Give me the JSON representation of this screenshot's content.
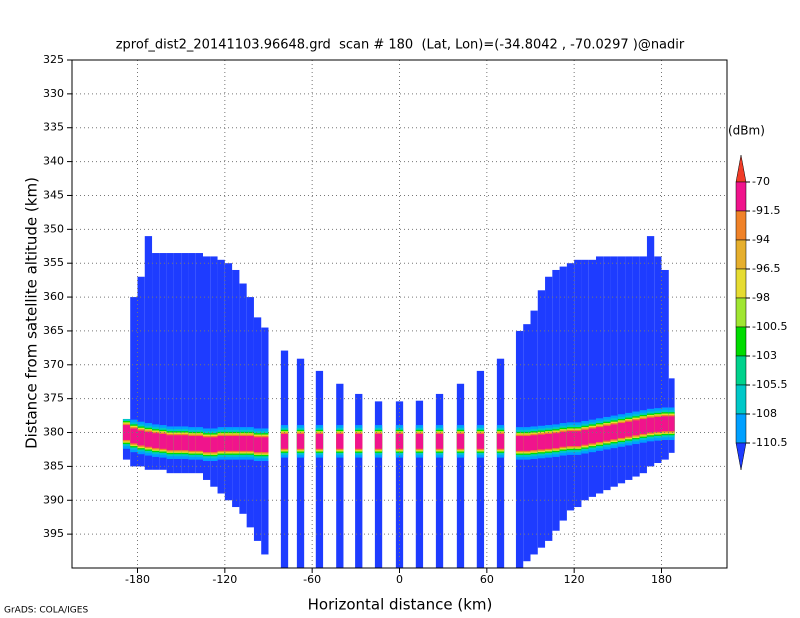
{
  "chart_data": {
    "type": "shaded",
    "title": "zprof_dist2_20141103.96648.grd  scan # 180  (Lat, Lon)=(-34.8042 , -70.0297 )@nadir",
    "x_label": "Horizontal distance (km)",
    "y_label": "Distance from satellite altitude (km)",
    "footer": "GrADS: COLA/IGES",
    "xlim": [
      -225,
      225
    ],
    "xticks": [
      -180,
      -120,
      -60,
      0,
      60,
      120,
      180
    ],
    "ylim": [
      325,
      400
    ],
    "yticks": [
      325,
      330,
      335,
      340,
      345,
      350,
      355,
      360,
      365,
      370,
      375,
      380,
      385,
      390,
      395
    ],
    "y_inverted": true,
    "grid": true,
    "colorbar": {
      "unit": "(dBm)",
      "levels": [
        -70,
        -91.5,
        -94,
        -96.5,
        -98,
        -100.5,
        -103,
        -105.5,
        -108,
        -110.5
      ],
      "colors": [
        "#f03c28",
        "#f0148c",
        "#f08228",
        "#e6af2d",
        "#e6dc32",
        "#a0e632",
        "#00dc00",
        "#00d28c",
        "#00c8c8",
        "#00a0ff",
        "#1e3cff"
      ]
    },
    "col_x0": [
      -190,
      -185,
      -180,
      -175,
      -170,
      -165,
      -160,
      -155,
      -150,
      -145,
      -140,
      -135,
      -130,
      -125,
      -120,
      -115,
      -110,
      -105,
      -100,
      -95,
      -81.5,
      -70.5,
      -57.5,
      -43.5,
      -30.5,
      -16.9,
      -2.5,
      11.2,
      25,
      39.4,
      53.1,
      66.9,
      80,
      85,
      90,
      95,
      100,
      105,
      110,
      115,
      120,
      125,
      130,
      135,
      140,
      145,
      150,
      155,
      160,
      165,
      170,
      175,
      180,
      185
    ],
    "col_x1": [
      -185,
      -180,
      -175,
      -170,
      -165,
      -160,
      -155,
      -150,
      -145,
      -140,
      -135,
      -130,
      -125,
      -120,
      -115,
      -110,
      -105,
      -100,
      -95,
      -90,
      -76.5,
      -65.5,
      -52.5,
      -38.5,
      -25.5,
      -11.9,
      2.5,
      16.2,
      30,
      44.4,
      58.1,
      71.9,
      85,
      90,
      95,
      100,
      105,
      110,
      115,
      120,
      125,
      130,
      135,
      140,
      145,
      150,
      155,
      160,
      165,
      170,
      175,
      180,
      185,
      189
    ],
    "col_top": [
      378,
      360,
      357,
      351,
      353.5,
      353.5,
      353.5,
      353.5,
      353.5,
      353.5,
      353.5,
      354,
      354,
      354.5,
      355,
      356,
      358,
      360,
      363,
      364.5,
      367.9,
      369.1,
      370.9,
      372.8,
      374.3,
      375.4,
      375.4,
      375.3,
      374.3,
      372.8,
      370.9,
      369.1,
      365,
      364,
      362,
      359,
      357,
      356,
      355.5,
      355,
      354.5,
      354.5,
      354.5,
      354,
      354,
      354,
      354,
      354,
      354,
      354,
      351,
      354,
      356,
      372
    ],
    "col_bottom": [
      384,
      385,
      385,
      385.5,
      385.5,
      385.5,
      386,
      386,
      386,
      386,
      386,
      387,
      388,
      389,
      390,
      391,
      392,
      394,
      396,
      398,
      400,
      400,
      400,
      400,
      400,
      400,
      400,
      400,
      400,
      400,
      400,
      400,
      400,
      399,
      398,
      397,
      396,
      394.5,
      393,
      391.5,
      391,
      390,
      389.5,
      389,
      388.5,
      388,
      387.5,
      387,
      386.5,
      386,
      385,
      384.5,
      384,
      383
    ],
    "col_peak": [
      380,
      380.5,
      380.8,
      381,
      381.2,
      381.3,
      381.5,
      381.5,
      381.5,
      381.6,
      381.6,
      381.8,
      381.8,
      381.6,
      381.6,
      381.6,
      381.6,
      381.6,
      381.8,
      381.8,
      381.3,
      381.3,
      381.3,
      381.3,
      381.3,
      381.3,
      381.3,
      381.3,
      381.3,
      381.3,
      381.3,
      381.3,
      381.6,
      381.6,
      381.5,
      381.4,
      381.3,
      381.2,
      381,
      380.9,
      380.9,
      380.7,
      380.5,
      380.3,
      380.1,
      379.9,
      379.7,
      379.5,
      379.3,
      379.1,
      378.9,
      378.8,
      378.7,
      378.7
    ]
  }
}
